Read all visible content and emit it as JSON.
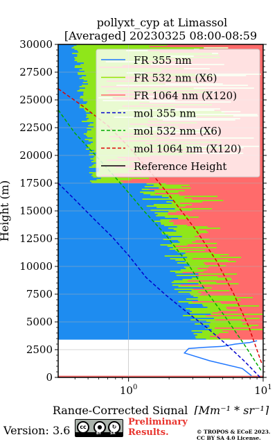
{
  "chart_data": {
    "type": "line",
    "title": "pollyxt_cyp at Limassol",
    "subtitle": "[Averaged] 20230325 08:00-08:59",
    "xlabel": "Range-Corrected Signal",
    "xlabel_unit": "[Mm⁻¹ * sr⁻¹]",
    "ylabel": "Height (m)",
    "xscale": "log",
    "xlim": [
      0.3,
      10
    ],
    "ylim": [
      0,
      30000
    ],
    "grid": true,
    "legend_position": "top-right",
    "x_ticks": [
      {
        "value": 1,
        "label": "10",
        "exp": "0"
      },
      {
        "value": 10,
        "label": "10",
        "exp": "1"
      }
    ],
    "y_ticks": [
      {
        "value": 0,
        "label": "0"
      },
      {
        "value": 2500,
        "label": "2500"
      },
      {
        "value": 5000,
        "label": "5000"
      },
      {
        "value": 7500,
        "label": "7500"
      },
      {
        "value": 10000,
        "label": "10000"
      },
      {
        "value": 12500,
        "label": "12500"
      },
      {
        "value": 15000,
        "label": "15000"
      },
      {
        "value": 17500,
        "label": "17500"
      },
      {
        "value": 20000,
        "label": "20000"
      },
      {
        "value": 22500,
        "label": "22500"
      },
      {
        "value": 25000,
        "label": "25000"
      },
      {
        "value": 27500,
        "label": "27500"
      },
      {
        "value": 30000,
        "label": "30000"
      }
    ],
    "series": [
      {
        "name": "FR 355 nm",
        "color": "#1f77ff",
        "style": "solid",
        "x": [
          8.2,
          7.0,
          4.0,
          2.6,
          2.8,
          3.6,
          5.0,
          6.2,
          8.0,
          9.0
        ],
        "y": [
          150,
          800,
          1500,
          2200,
          2600,
          2700,
          2800,
          3000,
          3150,
          3300
        ]
      },
      {
        "name": "FR 532 nm (X6)",
        "color": "#90e800",
        "style": "solid",
        "x": [],
        "y": []
      },
      {
        "name": "FR 1064 nm (X120)",
        "color": "#ff6b6b",
        "style": "solid",
        "x": [],
        "y": []
      },
      {
        "name": "mol 355 nm",
        "color": "#0000cc",
        "style": "dashed",
        "x": [
          0.3,
          0.4,
          0.55,
          0.75,
          1.0,
          1.35,
          1.9,
          2.7,
          3.8,
          5.3,
          7.2,
          9.5
        ],
        "y": [
          17500,
          16000,
          14300,
          12700,
          11000,
          9000,
          7400,
          5900,
          4500,
          3000,
          1500,
          0
        ]
      },
      {
        "name": "mol 532 nm (X6)",
        "color": "#00aa00",
        "style": "dashed",
        "x": [
          0.3,
          0.4,
          0.6,
          0.9,
          1.3,
          1.9,
          2.7,
          3.7,
          5.2,
          7.2,
          9.8
        ],
        "y": [
          24100,
          22000,
          19700,
          17300,
          15000,
          12800,
          10400,
          7900,
          5500,
          3000,
          500
        ]
      },
      {
        "name": "mol 1064 nm (X120)",
        "color": "#dd0000",
        "style": "dashed",
        "x": [
          0.3,
          0.45,
          0.7,
          1.0,
          1.5,
          2.2,
          3.2,
          4.5,
          6.0,
          7.8,
          9.8
        ],
        "y": [
          26000,
          24500,
          22700,
          20800,
          18300,
          15800,
          13200,
          10500,
          7600,
          4600,
          1200
        ]
      },
      {
        "name": "Reference Height",
        "color": "#000000",
        "style": "solid",
        "x": [],
        "y": []
      }
    ]
  },
  "footer": {
    "version": "Version: 3.6",
    "cc_icons": [
      "cc-icon",
      "by-icon",
      "sa-icon"
    ],
    "cc_label": "cc",
    "by_label": "BY",
    "sa_label": "SA",
    "preliminary_line1": "Preliminary",
    "preliminary_line2": "Results.",
    "copyright_line1": "© TROPOS & ECoE 2023.",
    "copyright_line2": "CC BY SA 4.0 License."
  }
}
